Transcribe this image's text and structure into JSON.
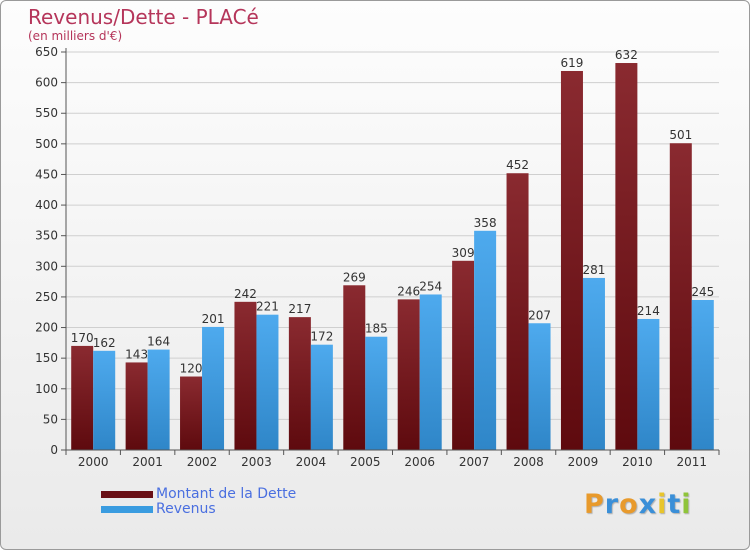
{
  "title": "Revenus/Dette - PLACé",
  "subtitle": "(en milliers d'€)",
  "colors": {
    "dette": "#7a1a1f",
    "revenus": "#3a9ce0",
    "title": "#b5355a",
    "legend_text": "#4a6fe0"
  },
  "legend": [
    {
      "label": "Montant de la Dette",
      "color": "#6a0f14"
    },
    {
      "label": "Revenus",
      "color": "#3a9ce0"
    }
  ],
  "logo": {
    "letters": [
      "P",
      "r",
      "o",
      "x",
      "i",
      "t",
      "i"
    ],
    "colors": [
      "#e89a2c",
      "#3a8fd8",
      "#e89a2c",
      "#3a8fd8",
      "#e8c52c",
      "#3a8fd8",
      "#8fc43a"
    ]
  },
  "chart_data": {
    "type": "bar",
    "categories": [
      "2000",
      "2001",
      "2002",
      "2003",
      "2004",
      "2005",
      "2006",
      "2007",
      "2008",
      "2009",
      "2010",
      "2011"
    ],
    "series": [
      {
        "name": "Montant de la Dette",
        "values": [
          170,
          143,
          120,
          242,
          217,
          269,
          246,
          309,
          452,
          619,
          632,
          501
        ]
      },
      {
        "name": "Revenus",
        "values": [
          162,
          164,
          201,
          221,
          172,
          185,
          254,
          358,
          207,
          281,
          214,
          245
        ]
      }
    ],
    "ylim": [
      0,
      650
    ],
    "yticks": [
      0,
      50,
      100,
      150,
      200,
      250,
      300,
      350,
      400,
      450,
      500,
      550,
      600,
      650
    ],
    "grid": true
  }
}
